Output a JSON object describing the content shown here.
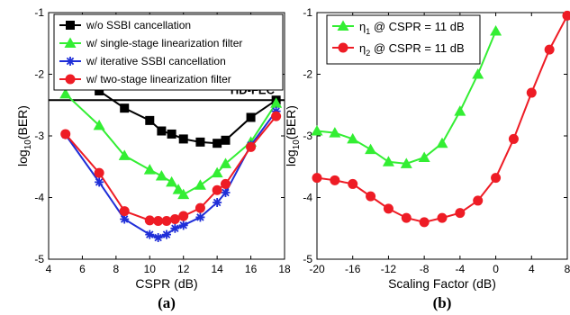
{
  "chart_data": [
    {
      "type": "line",
      "panel_label": "(a)",
      "xlabel": "CSPR (dB)",
      "ylabel": "log10(BER)",
      "ylabel_parts": {
        "main": "log",
        "sub": "10",
        "rest": "(BER)"
      },
      "xlim": [
        4,
        18
      ],
      "ylim": [
        -5,
        -1
      ],
      "xticks": [
        "4",
        "6",
        "8",
        "10",
        "12",
        "14",
        "16",
        "18"
      ],
      "xtick_values": [
        4,
        6,
        8,
        10,
        12,
        14,
        16,
        18
      ],
      "yticks": [
        "-5",
        "-4",
        "-3",
        "-2",
        "-1"
      ],
      "ytick_values": [
        -5,
        -4,
        -3,
        -2,
        -1
      ],
      "grid": false,
      "legend_position": "top-right",
      "threshold": {
        "label": "HD-FEC",
        "value": -2.42
      },
      "series": [
        {
          "name": "w/o SSBI cancellation",
          "color": "#000000",
          "marker": "square",
          "x": [
            5,
            7,
            8.5,
            10,
            10.7,
            11.3,
            12,
            13,
            14,
            14.5,
            16,
            17.5
          ],
          "y": [
            -1.72,
            -2.27,
            -2.55,
            -2.75,
            -2.92,
            -2.97,
            -3.05,
            -3.1,
            -3.12,
            -3.07,
            -2.7,
            -2.42
          ]
        },
        {
          "name": "w/ single-stage linearization filter",
          "color": "#33ee33",
          "marker": "triangle",
          "x": [
            5,
            7,
            8.5,
            10,
            10.7,
            11.3,
            11.7,
            12,
            13,
            14,
            14.5,
            16,
            17.5
          ],
          "y": [
            -2.32,
            -2.83,
            -3.32,
            -3.55,
            -3.65,
            -3.75,
            -3.87,
            -3.95,
            -3.8,
            -3.6,
            -3.45,
            -3.1,
            -2.47
          ]
        },
        {
          "name": "w/ iterative SSBI cancellation",
          "color": "#1f2ed8",
          "marker": "star",
          "x": [
            5,
            7,
            8.5,
            10,
            10.5,
            11,
            11.5,
            12,
            13,
            14,
            14.5,
            16,
            17.5
          ],
          "y": [
            -2.98,
            -3.75,
            -4.35,
            -4.6,
            -4.65,
            -4.6,
            -4.5,
            -4.45,
            -4.32,
            -4.08,
            -3.92,
            -3.15,
            -2.6
          ]
        },
        {
          "name": "w/ two-stage linearization filter",
          "color": "#ee1c25",
          "marker": "circle",
          "x": [
            5,
            7,
            8.5,
            10,
            10.5,
            11,
            11.5,
            12,
            13,
            14,
            14.5,
            16,
            17.5
          ],
          "y": [
            -2.97,
            -3.6,
            -4.22,
            -4.37,
            -4.38,
            -4.38,
            -4.35,
            -4.3,
            -4.17,
            -3.88,
            -3.78,
            -3.18,
            -2.68
          ]
        }
      ]
    },
    {
      "type": "line",
      "panel_label": "(b)",
      "xlabel": "Scaling Factor (dB)",
      "ylabel": "log10(BER)",
      "ylabel_parts": {
        "main": "log",
        "sub": "10",
        "rest": "(BER)"
      },
      "xlim": [
        -20,
        8
      ],
      "ylim": [
        -5,
        -1
      ],
      "xticks": [
        "-20",
        "-16",
        "-12",
        "-8",
        "-4",
        "0",
        "4",
        "8"
      ],
      "xtick_values": [
        -20,
        -16,
        -12,
        -8,
        -4,
        0,
        4,
        8
      ],
      "yticks": [
        "-5",
        "-4",
        "-3",
        "-2",
        "-1"
      ],
      "ytick_values": [
        -5,
        -4,
        -3,
        -2,
        -1
      ],
      "grid": false,
      "legend_position": "top-left",
      "series": [
        {
          "name": "η1 @ CSPR = 11 dB",
          "name_parts": {
            "sym": "η",
            "sub": "1",
            "rest": " @ CSPR = 11 dB"
          },
          "color": "#33ee33",
          "marker": "triangle",
          "x": [
            -20,
            -18,
            -16,
            -14,
            -12,
            -10,
            -8,
            -6,
            -4,
            -2,
            0
          ],
          "y": [
            -2.92,
            -2.95,
            -3.05,
            -3.22,
            -3.42,
            -3.45,
            -3.35,
            -3.12,
            -2.6,
            -2.0,
            -1.3
          ]
        },
        {
          "name": "η2 @ CSPR = 11 dB",
          "name_parts": {
            "sym": "η",
            "sub": "2",
            "rest": " @ CSPR = 11 dB"
          },
          "color": "#ee1c25",
          "marker": "circle",
          "x": [
            -20,
            -18,
            -16,
            -14,
            -12,
            -10,
            -8,
            -6,
            -4,
            -2,
            0,
            2,
            4,
            6,
            8
          ],
          "y": [
            -3.68,
            -3.72,
            -3.78,
            -3.98,
            -4.18,
            -4.33,
            -4.4,
            -4.33,
            -4.25,
            -4.05,
            -3.68,
            -3.05,
            -2.3,
            -1.6,
            -1.05
          ]
        }
      ]
    }
  ]
}
